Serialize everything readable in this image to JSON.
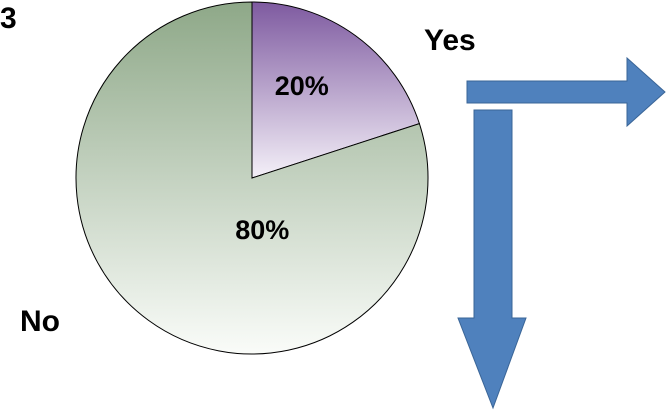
{
  "corner_text": "3",
  "labels": {
    "yes": "Yes",
    "no": "No"
  },
  "chart_data": {
    "type": "pie",
    "slices": [
      {
        "label": "20%",
        "value": 20,
        "color_top": "#7e5aa0",
        "color_bottom": "#f4f0f8"
      },
      {
        "label": "80%",
        "value": 80,
        "color_top": "#8ea888",
        "color_bottom": "#fafcf9"
      }
    ],
    "start_angle_deg": 0,
    "direction": "clockwise"
  },
  "colors": {
    "arrow_fill": "#4f81bd",
    "arrow_stroke": "#3a6597",
    "pie_outline": "#000000"
  }
}
